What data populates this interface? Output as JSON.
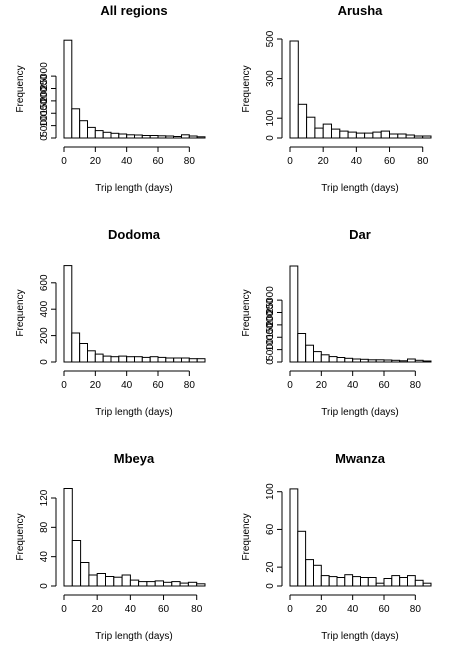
{
  "chart_data": [
    {
      "type": "bar",
      "title": "All regions",
      "xlabel": "Trip length (days)",
      "ylabel": "Frequency",
      "bin_width": 5,
      "xlim": [
        0,
        90
      ],
      "ylim": [
        0,
        40000
      ],
      "xticks": [
        0,
        20,
        40,
        60,
        80
      ],
      "yticks": [
        0,
        5000,
        10000,
        15000,
        20000,
        25000
      ],
      "ytick_labels": [
        "0",
        "5000",
        "10000",
        "15000",
        "20000",
        "25000"
      ],
      "bin_starts": [
        0,
        5,
        10,
        15,
        20,
        25,
        30,
        35,
        40,
        45,
        50,
        55,
        60,
        65,
        70,
        75,
        80,
        85
      ],
      "values": [
        39500,
        11800,
        7000,
        4300,
        3000,
        2300,
        1900,
        1600,
        1300,
        1200,
        1000,
        1000,
        900,
        800,
        600,
        1300,
        800,
        500
      ]
    },
    {
      "type": "bar",
      "title": "Arusha",
      "xlabel": "Trip length (days)",
      "ylabel": "Frequency",
      "bin_width": 5,
      "xlim": [
        0,
        85
      ],
      "ylim": [
        0,
        500
      ],
      "xticks": [
        0,
        20,
        40,
        60,
        80
      ],
      "yticks": [
        0,
        100,
        300,
        500
      ],
      "ytick_labels": [
        "0",
        "100",
        "300",
        "500"
      ],
      "bin_starts": [
        0,
        5,
        10,
        15,
        20,
        25,
        30,
        35,
        40,
        45,
        50,
        55,
        60,
        65,
        70,
        75,
        80
      ],
      "values": [
        490,
        170,
        105,
        50,
        70,
        45,
        35,
        30,
        25,
        25,
        30,
        35,
        20,
        20,
        15,
        10,
        10
      ]
    },
    {
      "type": "bar",
      "title": "Dodoma",
      "xlabel": "Trip length (days)",
      "ylabel": "Frequency",
      "bin_width": 5,
      "xlim": [
        0,
        90
      ],
      "ylim": [
        0,
        750
      ],
      "xticks": [
        0,
        20,
        40,
        60,
        80
      ],
      "yticks": [
        0,
        200,
        400,
        600
      ],
      "ytick_labels": [
        "0",
        "200",
        "400",
        "600"
      ],
      "bin_starts": [
        0,
        5,
        10,
        15,
        20,
        25,
        30,
        35,
        40,
        45,
        50,
        55,
        60,
        65,
        70,
        75,
        80,
        85
      ],
      "values": [
        730,
        220,
        140,
        85,
        60,
        45,
        40,
        45,
        40,
        40,
        35,
        40,
        35,
        30,
        30,
        30,
        25,
        25
      ]
    },
    {
      "type": "bar",
      "title": "Dar",
      "xlabel": "Trip length (days)",
      "ylabel": "Frequency",
      "bin_width": 5,
      "xlim": [
        0,
        90
      ],
      "ylim": [
        0,
        40000
      ],
      "xticks": [
        0,
        20,
        40,
        60,
        80
      ],
      "yticks": [
        0,
        5000,
        10000,
        15000,
        20000,
        25000
      ],
      "ytick_labels": [
        "0",
        "5000",
        "10000",
        "15000",
        "20000",
        "25000"
      ],
      "bin_starts": [
        0,
        5,
        10,
        15,
        20,
        25,
        30,
        35,
        40,
        45,
        50,
        55,
        60,
        65,
        70,
        75,
        80,
        85
      ],
      "values": [
        38800,
        11500,
        6800,
        4200,
        2900,
        2200,
        1800,
        1500,
        1200,
        1100,
        900,
        900,
        800,
        700,
        500,
        1200,
        700,
        400
      ]
    },
    {
      "type": "bar",
      "title": "Mbeya",
      "xlabel": "Trip length (days)",
      "ylabel": "Frequency",
      "bin_width": 5,
      "xlim": [
        0,
        85
      ],
      "ylim": [
        0,
        135
      ],
      "xticks": [
        0,
        20,
        40,
        60,
        80
      ],
      "yticks": [
        0,
        40,
        80,
        120
      ],
      "ytick_labels": [
        "0",
        "40",
        "80",
        "120"
      ],
      "bin_starts": [
        0,
        5,
        10,
        15,
        20,
        25,
        30,
        35,
        40,
        45,
        50,
        55,
        60,
        65,
        70,
        75,
        80
      ],
      "values": [
        133,
        62,
        32,
        15,
        17,
        13,
        12,
        15,
        8,
        6,
        6,
        7,
        5,
        6,
        4,
        5,
        3
      ]
    },
    {
      "type": "bar",
      "title": "Mwanza",
      "xlabel": "Trip length (days)",
      "ylabel": "Frequency",
      "bin_width": 5,
      "xlim": [
        0,
        90
      ],
      "ylim": [
        0,
        105
      ],
      "xticks": [
        0,
        20,
        40,
        60,
        80
      ],
      "yticks": [
        0,
        20,
        60,
        100
      ],
      "ytick_labels": [
        "0",
        "20",
        "60",
        "100"
      ],
      "bin_starts": [
        0,
        5,
        10,
        15,
        20,
        25,
        30,
        35,
        40,
        45,
        50,
        55,
        60,
        65,
        70,
        75,
        80,
        85
      ],
      "values": [
        103,
        58,
        28,
        22,
        11,
        10,
        9,
        12,
        10,
        9,
        9,
        3,
        8,
        11,
        9,
        11,
        6,
        3
      ]
    }
  ]
}
